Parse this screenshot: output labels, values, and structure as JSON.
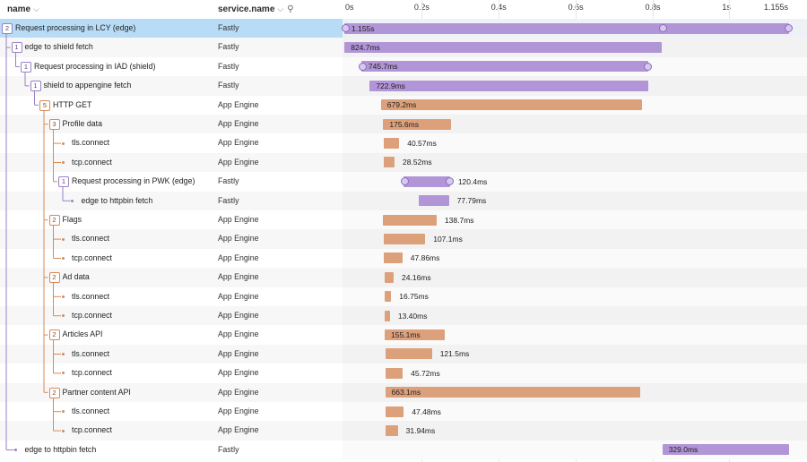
{
  "header": {
    "name_label": "name",
    "service_label": "service.name",
    "ticks": [
      "0s",
      "0.2s",
      "0.4s",
      "0.6s",
      "0.8s",
      "1s",
      "1.155s"
    ]
  },
  "colors": {
    "fastly": "#b195d6",
    "app_engine": "#dca07b",
    "selected_row": "#b8dcf6"
  },
  "rows": [
    {
      "name": "Request processing in LCY (edge)",
      "service": "Fastly",
      "depth": 0,
      "children": "2",
      "kind": "p",
      "start": 0,
      "duration": "1.155s",
      "dur_ms": 1155,
      "handle": true,
      "selected": true
    },
    {
      "name": "edge to shield fetch",
      "service": "Fastly",
      "depth": 1,
      "children": "1",
      "kind": "p",
      "start": 0.5,
      "duration": "824.7ms",
      "dur_ms": 824.7
    },
    {
      "name": "Request processing in IAD (shield)",
      "service": "Fastly",
      "depth": 2,
      "children": "1",
      "kind": "p",
      "start": 44,
      "duration": "745.7ms",
      "dur_ms": 745.7,
      "handle": true
    },
    {
      "name": "shield to appengine fetch",
      "service": "Fastly",
      "depth": 3,
      "children": "1",
      "kind": "p",
      "start": 66,
      "duration": "722.9ms",
      "dur_ms": 722.9
    },
    {
      "name": "HTTP GET",
      "service": "App Engine",
      "depth": 4,
      "children": "5",
      "kind": "o",
      "start": 95,
      "duration": "679.2ms",
      "dur_ms": 679.2
    },
    {
      "name": "Profile data",
      "service": "App Engine",
      "depth": 5,
      "children": "3",
      "kind": "o",
      "start": 101,
      "duration": "175.6ms",
      "dur_ms": 175.6
    },
    {
      "name": "tls.connect",
      "service": "App Engine",
      "depth": 6,
      "children": "",
      "kind": "o",
      "start": 102,
      "duration": "40.57ms",
      "dur_ms": 40.57
    },
    {
      "name": "tcp.connect",
      "service": "App Engine",
      "depth": 6,
      "children": "",
      "kind": "o",
      "start": 102,
      "duration": "28.52ms",
      "dur_ms": 28.52
    },
    {
      "name": "Request processing in PWK (edge)",
      "service": "Fastly",
      "depth": 6,
      "children": "1",
      "kind": "p",
      "start": 154,
      "duration": "120.4ms",
      "dur_ms": 120.4,
      "handle": true
    },
    {
      "name": "edge to httpbin fetch",
      "service": "Fastly",
      "depth": 7,
      "children": "",
      "kind": "p",
      "start": 194,
      "duration": "77.79ms",
      "dur_ms": 77.79
    },
    {
      "name": "Flags",
      "service": "App Engine",
      "depth": 5,
      "children": "2",
      "kind": "o",
      "start": 101,
      "duration": "138.7ms",
      "dur_ms": 138.7
    },
    {
      "name": "tls.connect",
      "service": "App Engine",
      "depth": 6,
      "children": "",
      "kind": "o",
      "start": 103,
      "duration": "107.1ms",
      "dur_ms": 107.1
    },
    {
      "name": "tcp.connect",
      "service": "App Engine",
      "depth": 6,
      "children": "",
      "kind": "o",
      "start": 103,
      "duration": "47.86ms",
      "dur_ms": 47.86
    },
    {
      "name": "Ad data",
      "service": "App Engine",
      "depth": 5,
      "children": "2",
      "kind": "o",
      "start": 104,
      "duration": "24.16ms",
      "dur_ms": 24.16
    },
    {
      "name": "tls.connect",
      "service": "App Engine",
      "depth": 6,
      "children": "",
      "kind": "o",
      "start": 105,
      "duration": "16.75ms",
      "dur_ms": 16.75
    },
    {
      "name": "tcp.connect",
      "service": "App Engine",
      "depth": 6,
      "children": "",
      "kind": "o",
      "start": 105,
      "duration": "13.40ms",
      "dur_ms": 13.4
    },
    {
      "name": "Articles API",
      "service": "App Engine",
      "depth": 5,
      "children": "2",
      "kind": "o",
      "start": 105,
      "duration": "155.1ms",
      "dur_ms": 155.1
    },
    {
      "name": "tls.connect",
      "service": "App Engine",
      "depth": 6,
      "children": "",
      "kind": "o",
      "start": 106,
      "duration": "121.5ms",
      "dur_ms": 121.5
    },
    {
      "name": "tcp.connect",
      "service": "App Engine",
      "depth": 6,
      "children": "",
      "kind": "o",
      "start": 106,
      "duration": "45.72ms",
      "dur_ms": 45.72
    },
    {
      "name": "Partner content API",
      "service": "App Engine",
      "depth": 5,
      "children": "2",
      "kind": "o",
      "start": 106,
      "duration": "663.1ms",
      "dur_ms": 663.1
    },
    {
      "name": "tls.connect",
      "service": "App Engine",
      "depth": 6,
      "children": "",
      "kind": "o",
      "start": 107,
      "duration": "47.48ms",
      "dur_ms": 47.48
    },
    {
      "name": "tcp.connect",
      "service": "App Engine",
      "depth": 6,
      "children": "",
      "kind": "o",
      "start": 107,
      "duration": "31.94ms",
      "dur_ms": 31.94
    },
    {
      "name": "edge to httpbin fetch",
      "service": "Fastly",
      "depth": 1,
      "children": "",
      "kind": "p",
      "start": 826,
      "duration": "329.0ms",
      "dur_ms": 329
    }
  ]
}
